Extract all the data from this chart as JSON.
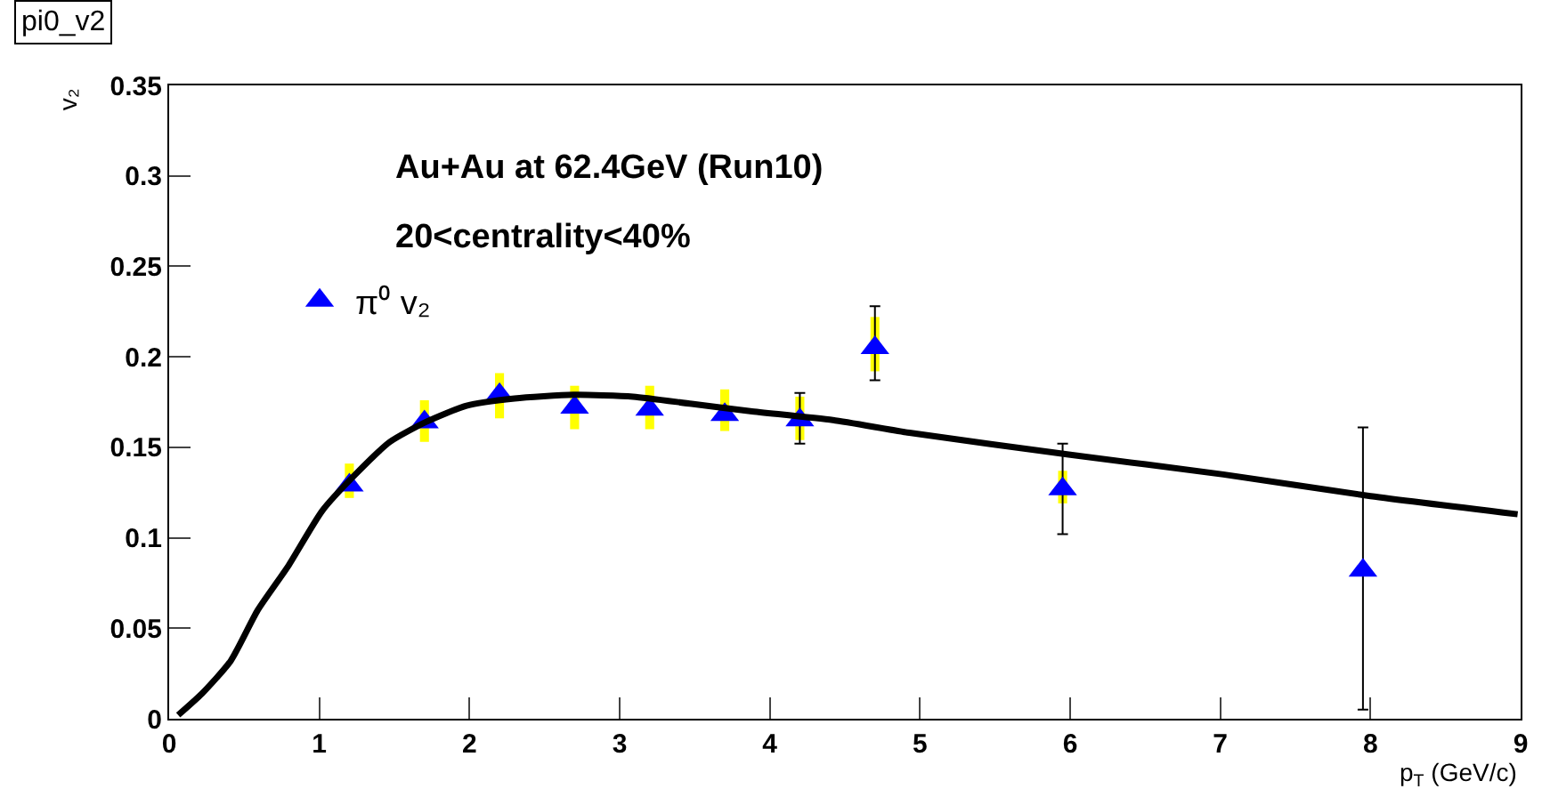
{
  "chart_data": {
    "type": "scatter",
    "title": "pi0_v2",
    "xlabel": "p$_{T}$ (GeV/c)",
    "ylabel": "v₂",
    "annotations": [
      "Au+Au at 62.4GeV (Run10)",
      "20<centrality<40%"
    ],
    "xlim": [
      0,
      9
    ],
    "xticks": [
      0,
      1,
      2,
      3,
      4,
      5,
      6,
      7,
      8,
      9
    ],
    "ylim": [
      0,
      0.35
    ],
    "yticks": [
      0,
      0.05,
      0.1,
      0.15,
      0.2,
      0.25,
      0.3,
      0.35
    ],
    "legend": "top left",
    "series": [
      {
        "color": "#ffff00",
        "type": "bar",
        "x": [
          1.2,
          1.7,
          2.2,
          2.7,
          3.2,
          3.7,
          4.2,
          4.7,
          5.95
        ],
        "base": [
          0.122,
          0.153,
          0.166,
          0.16,
          0.16,
          0.159,
          0.154,
          0.192,
          0.119
        ],
        "values": [
          0.019,
          0.023,
          0.025,
          0.024,
          0.024,
          0.023,
          0.024,
          0.03,
          0.018
        ]
      },
      {
        "name": "π⁰ v₂",
        "color": "#0000ff",
        "marker": "triangle",
        "x": [
          1.2,
          1.7,
          2.2,
          2.7,
          3.2,
          3.7,
          4.2,
          4.7,
          5.95,
          7.95
        ],
        "values": [
          0.129,
          0.164,
          0.179,
          0.172,
          0.171,
          0.168,
          0.165,
          0.205,
          0.127,
          0.082
        ],
        "errors": [
          null,
          null,
          null,
          null,
          null,
          null,
          [
            0.152,
            0.18
          ],
          [
            0.187,
            0.228
          ],
          [
            0.102,
            0.152
          ],
          [
            0.005,
            0.161
          ]
        ]
      },
      {
        "color": "#000000",
        "type": "line",
        "marker": "none",
        "x": [
          0.06,
          0.22,
          0.41,
          0.59,
          0.79,
          1.02,
          1.24,
          1.47,
          1.71,
          1.98,
          2.3,
          2.69,
          3.09,
          3.48,
          3.87,
          4.42,
          4.93,
          5.99,
          7.02,
          8.0,
          8.98
        ],
        "values": [
          0.002,
          0.014,
          0.032,
          0.06,
          0.084,
          0.115,
          0.135,
          0.153,
          0.164,
          0.173,
          0.177,
          0.179,
          0.178,
          0.174,
          0.17,
          0.165,
          0.158,
          0.146,
          0.135,
          0.123,
          0.113
        ]
      }
    ]
  }
}
